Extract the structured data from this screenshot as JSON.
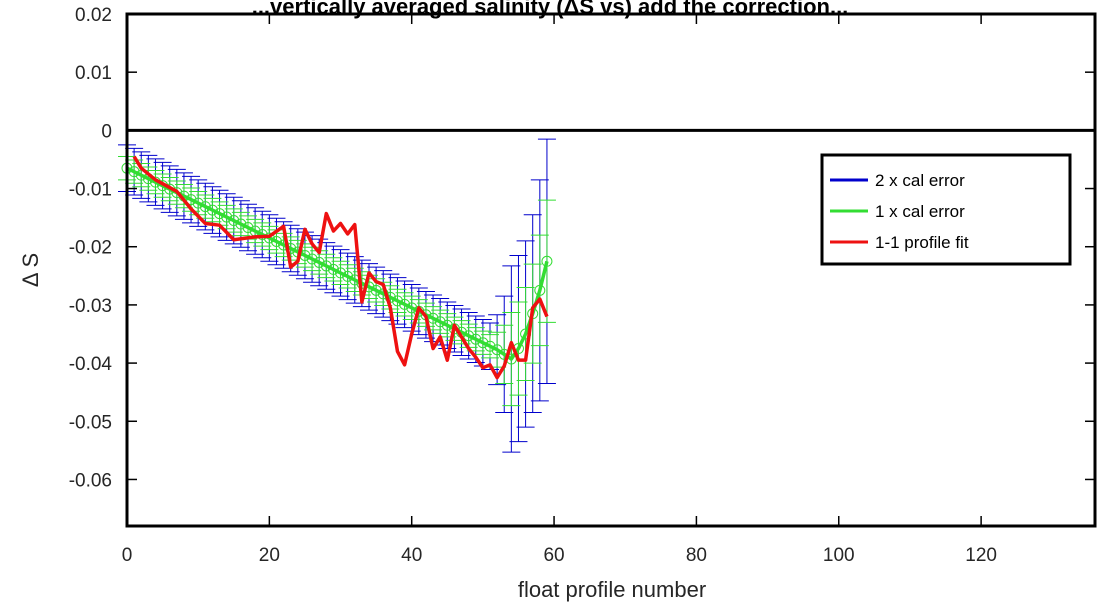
{
  "chart_data": {
    "type": "line",
    "title": "...vertically averaged salinity (ΔS vs) add the correction...",
    "xlabel": "float profile number",
    "ylabel": "Δ S",
    "xlim": [
      0,
      136
    ],
    "ylim": [
      -0.068,
      0.02
    ],
    "x_ticks": [
      0,
      20,
      40,
      60,
      80,
      100,
      120
    ],
    "x_tick_labels": [
      "0",
      "20",
      "40",
      "60",
      "80",
      "100",
      "120"
    ],
    "y_ticks": [
      0.02,
      0.01,
      0,
      -0.01,
      -0.02,
      -0.03,
      -0.04,
      -0.05,
      -0.06
    ],
    "y_tick_labels": [
      "0.02",
      "0.01",
      "0",
      "-0.01",
      "-0.02",
      "-0.03",
      "-0.04",
      "-0.05",
      "-0.06"
    ],
    "zero_line": 0,
    "grid": false,
    "legend": {
      "placement": "top-right",
      "entries": [
        "2 x cal error",
        "1 x cal error",
        "1-1 profile fit"
      ]
    },
    "colors": {
      "cal2": "#0000cc",
      "cal1": "#33dd33",
      "fit": "#ee1111",
      "axis": "#000000"
    },
    "calibration_fit": {
      "x": [
        0,
        1,
        2,
        3,
        4,
        5,
        6,
        7,
        8,
        9,
        10,
        11,
        12,
        13,
        14,
        15,
        16,
        17,
        18,
        19,
        20,
        21,
        22,
        23,
        24,
        25,
        26,
        27,
        28,
        29,
        30,
        31,
        32,
        33,
        34,
        35,
        36,
        37,
        38,
        39,
        40,
        41,
        42,
        43,
        44,
        45,
        46,
        47,
        48,
        49,
        50,
        51,
        52,
        53,
        54,
        55,
        56,
        57,
        58,
        59
      ],
      "y": [
        -0.0065,
        -0.0071,
        -0.0077,
        -0.0083,
        -0.0089,
        -0.0095,
        -0.0101,
        -0.0107,
        -0.0113,
        -0.0119,
        -0.0125,
        -0.0131,
        -0.0137,
        -0.0143,
        -0.0149,
        -0.0155,
        -0.0161,
        -0.0167,
        -0.0173,
        -0.0179,
        -0.0185,
        -0.0191,
        -0.0197,
        -0.0203,
        -0.0209,
        -0.0215,
        -0.0221,
        -0.0227,
        -0.0233,
        -0.0239,
        -0.0245,
        -0.0251,
        -0.0257,
        -0.0263,
        -0.0269,
        -0.0275,
        -0.0281,
        -0.0287,
        -0.0293,
        -0.0299,
        -0.0305,
        -0.0311,
        -0.0317,
        -0.0323,
        -0.0329,
        -0.0335,
        -0.0341,
        -0.0347,
        -0.0353,
        -0.0359,
        -0.0365,
        -0.0371,
        -0.0377,
        -0.0385,
        -0.0393,
        -0.0375,
        -0.035,
        -0.0315,
        -0.0275,
        -0.0225
      ],
      "err1": [
        0.002,
        0.002,
        0.002,
        0.002,
        0.002,
        0.002,
        0.002,
        0.002,
        0.002,
        0.002,
        0.002,
        0.002,
        0.002,
        0.002,
        0.002,
        0.002,
        0.002,
        0.002,
        0.002,
        0.002,
        0.002,
        0.002,
        0.002,
        0.002,
        0.002,
        0.002,
        0.002,
        0.002,
        0.002,
        0.002,
        0.002,
        0.002,
        0.002,
        0.002,
        0.002,
        0.002,
        0.002,
        0.002,
        0.002,
        0.002,
        0.002,
        0.002,
        0.002,
        0.002,
        0.002,
        0.002,
        0.002,
        0.002,
        0.002,
        0.002,
        0.002,
        0.002,
        0.003,
        0.005,
        0.008,
        0.008,
        0.008,
        0.0085,
        0.0095,
        0.0105
      ],
      "err2": [
        0.004,
        0.004,
        0.004,
        0.004,
        0.004,
        0.004,
        0.004,
        0.004,
        0.004,
        0.004,
        0.004,
        0.004,
        0.004,
        0.004,
        0.004,
        0.004,
        0.004,
        0.004,
        0.004,
        0.004,
        0.004,
        0.004,
        0.004,
        0.004,
        0.004,
        0.004,
        0.004,
        0.004,
        0.004,
        0.004,
        0.004,
        0.004,
        0.004,
        0.004,
        0.004,
        0.004,
        0.004,
        0.004,
        0.004,
        0.004,
        0.004,
        0.004,
        0.004,
        0.004,
        0.004,
        0.004,
        0.004,
        0.004,
        0.004,
        0.004,
        0.004,
        0.004,
        0.006,
        0.01,
        0.016,
        0.016,
        0.016,
        0.017,
        0.019,
        0.021
      ]
    },
    "profile_fit": {
      "x": [
        1,
        2,
        4,
        7,
        9,
        11,
        13,
        15,
        18,
        20,
        22,
        23,
        24,
        25,
        26,
        27,
        28,
        29,
        30,
        31,
        32,
        33,
        34,
        35,
        36,
        37,
        38,
        39,
        40,
        41,
        42,
        43,
        44,
        45,
        46,
        47,
        48,
        49,
        50,
        51,
        52,
        53,
        54,
        55,
        56,
        57,
        58,
        59
      ],
      "y": [
        -0.0045,
        -0.0065,
        -0.0085,
        -0.0105,
        -0.0135,
        -0.016,
        -0.0163,
        -0.0188,
        -0.0183,
        -0.0182,
        -0.0165,
        -0.0235,
        -0.0225,
        -0.017,
        -0.0195,
        -0.021,
        -0.0143,
        -0.0173,
        -0.016,
        -0.0178,
        -0.0162,
        -0.0295,
        -0.0245,
        -0.026,
        -0.0265,
        -0.0305,
        -0.038,
        -0.0403,
        -0.035,
        -0.0305,
        -0.032,
        -0.0375,
        -0.0355,
        -0.0395,
        -0.0335,
        -0.0355,
        -0.0375,
        -0.039,
        -0.0408,
        -0.0403,
        -0.0425,
        -0.0405,
        -0.0365,
        -0.0395,
        -0.0395,
        -0.0305,
        -0.029,
        -0.032
      ]
    }
  }
}
